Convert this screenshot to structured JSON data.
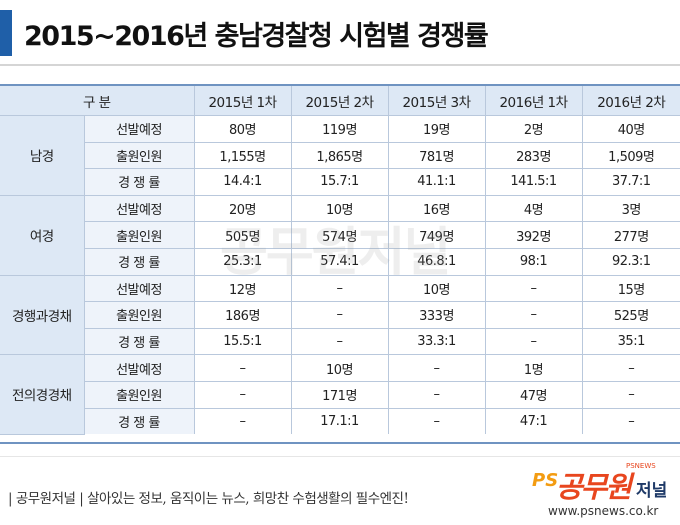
{
  "title": "2015~2016년 충남경찰청 시험별 경쟁률",
  "header": [
    "구  분",
    "2015년 1차",
    "2015년 2차",
    "2015년 3차",
    "2016년 1차",
    "2016년 2차"
  ],
  "groups": [
    {
      "name": "남경",
      "rows": [
        {
          "label": "선발예정",
          "values": [
            "80명",
            "119명",
            "19명",
            "2명",
            "40명"
          ]
        },
        {
          "label": "출원인원",
          "values": [
            "1,155명",
            "1,865명",
            "781명",
            "283명",
            "1,509명"
          ]
        },
        {
          "label": "경 쟁 률",
          "values": [
            "14.4:1",
            "15.7:1",
            "41.1:1",
            "141.5:1",
            "37.7:1"
          ]
        }
      ]
    },
    {
      "name": "여경",
      "rows": [
        {
          "label": "선발예정",
          "values": [
            "20명",
            "10명",
            "16명",
            "4명",
            "3명"
          ]
        },
        {
          "label": "출원인원",
          "values": [
            "505명",
            "574명",
            "749명",
            "392명",
            "277명"
          ]
        },
        {
          "label": "경 쟁 률",
          "values": [
            "25.3:1",
            "57.4:1",
            "46.8:1",
            "98:1",
            "92.3:1"
          ]
        }
      ]
    },
    {
      "name": "경행과경채",
      "rows": [
        {
          "label": "선발예정",
          "values": [
            "12명",
            "–",
            "10명",
            "–",
            "15명"
          ]
        },
        {
          "label": "출원인원",
          "values": [
            "186명",
            "–",
            "333명",
            "–",
            "525명"
          ]
        },
        {
          "label": "경 쟁 률",
          "values": [
            "15.5:1",
            "–",
            "33.3:1",
            "–",
            "35:1"
          ]
        }
      ]
    },
    {
      "name": "전의경경채",
      "rows": [
        {
          "label": "선발예정",
          "values": [
            "–",
            "10명",
            "–",
            "1명",
            "–"
          ]
        },
        {
          "label": "출원인원",
          "values": [
            "–",
            "171명",
            "–",
            "47명",
            "–"
          ]
        },
        {
          "label": "경 쟁 률",
          "values": [
            "–",
            "17.1:1",
            "–",
            "47:1",
            "–"
          ]
        }
      ]
    }
  ],
  "footer": {
    "text": "| 공무원저널 |  살아있는 정보, 움직이는 뉴스, 희망찬 수험생활의 필수엔진!",
    "logo_ps": "PS",
    "logo_name": "공무원",
    "logo_suffix": "저널",
    "logo_small": "PSNEWS",
    "logo_url": "www.psnews.co.kr"
  },
  "watermark": "공무원저널",
  "colors": {
    "accent_bar": "#1f5fa8",
    "header_fill": "#dde8f5",
    "table_rule": "#6f93c1",
    "logo_orange": "#e8461e",
    "logo_navy": "#1f3a68"
  }
}
